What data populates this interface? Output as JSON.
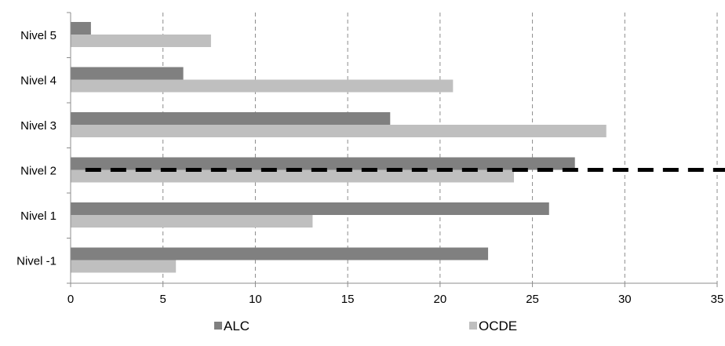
{
  "chart_data": {
    "type": "bar",
    "orientation": "horizontal",
    "categories": [
      "Nivel 5",
      "Nivel 4",
      "Nivel 3",
      "Nivel 2",
      "Nivel 1",
      "Nivel -1"
    ],
    "series": [
      {
        "name": "ALC",
        "color": "#808080",
        "values": [
          1.1,
          6.1,
          17.3,
          27.3,
          25.9,
          22.6
        ]
      },
      {
        "name": "OCDE",
        "color": "#bfbfbf",
        "values": [
          7.6,
          20.7,
          29.0,
          24.0,
          13.1,
          5.7
        ]
      }
    ],
    "xlim": [
      0,
      35
    ],
    "xticks": [
      0,
      5,
      10,
      15,
      20,
      25,
      30,
      35
    ],
    "xtick_labels": [
      "0",
      "5",
      "10",
      "15",
      "20",
      "25",
      "30",
      "35"
    ],
    "grid": "vertical dashed",
    "legend_position": "bottom",
    "reference_line": {
      "style": "black dashed",
      "category": "Nivel 2",
      "x_start": 0.8
    },
    "title": "",
    "xlabel": "",
    "ylabel": ""
  }
}
